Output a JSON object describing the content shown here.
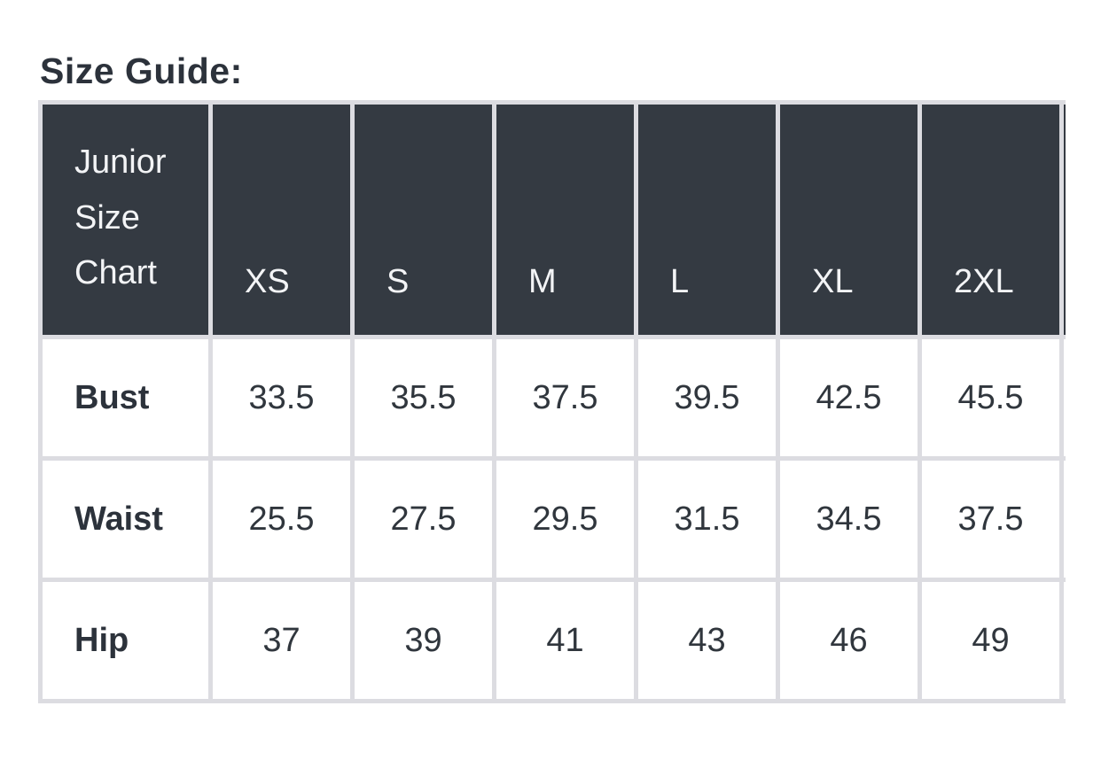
{
  "page": {
    "title": "Size Guide:"
  },
  "size_table": {
    "corner_label": "Junior Size Chart",
    "columns": [
      "XS",
      "S",
      "M",
      "L",
      "XL",
      "2XL"
    ],
    "rows": [
      {
        "label": "Bust",
        "values": [
          "33.5",
          "35.5",
          "37.5",
          "39.5",
          "42.5",
          "45.5"
        ]
      },
      {
        "label": "Waist",
        "values": [
          "25.5",
          "27.5",
          "29.5",
          "31.5",
          "34.5",
          "37.5"
        ]
      },
      {
        "label": "Hip",
        "values": [
          "37",
          "39",
          "41",
          "43",
          "46",
          "49"
        ]
      }
    ],
    "clipped_extra_column": true,
    "colors": {
      "header_bg": "#343a42",
      "header_text": "#f3f4f6",
      "body_text": "#30363d",
      "border": "#dcdce1",
      "cell_bg": "#ffffff"
    }
  }
}
